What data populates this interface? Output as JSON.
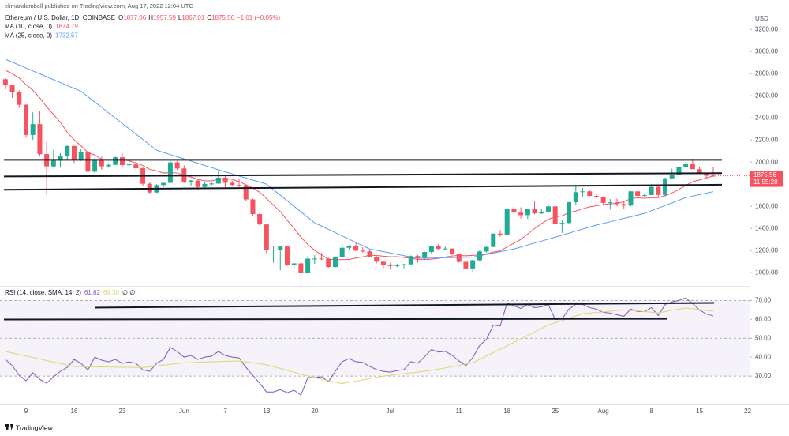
{
  "header": {
    "publisher": "elimandambell published on TradingView.com, Aug 17, 2022 12:04 UTC",
    "logo": "TradingView"
  },
  "chart_data": [
    {
      "type": "candlestick",
      "title": "Ethereum / U.S. Dollar, 1D, COINBASE",
      "ohlc_labels": [
        "O",
        "H",
        "L",
        "C"
      ],
      "change": "−1.01 (−0.05%)",
      "categories": [
        null,
        null,
        null,
        "9",
        null,
        null,
        null,
        null,
        null,
        null,
        "16",
        null,
        null,
        null,
        null,
        null,
        null,
        "23",
        null,
        null,
        null,
        null,
        null,
        null,
        null,
        null,
        "Jun",
        null,
        null,
        null,
        null,
        null,
        "7",
        null,
        null,
        null,
        null,
        null,
        "13",
        null,
        null,
        null,
        null,
        null,
        null,
        "20",
        null,
        null,
        null,
        null,
        null,
        null,
        null,
        null,
        null,
        null,
        "Jul",
        null,
        null,
        null,
        null,
        null,
        null,
        null,
        null,
        null,
        "11",
        null,
        null,
        null,
        null,
        null,
        null,
        "18",
        null,
        null,
        null,
        null,
        null,
        null,
        "25",
        null,
        null,
        null,
        null,
        null,
        null,
        "Aug",
        null,
        null,
        null,
        null,
        null,
        null,
        "8",
        null,
        null,
        null,
        null,
        null,
        null,
        "15",
        null,
        null,
        null,
        null,
        null,
        null,
        "22"
      ],
      "open": [
        2749,
        2694,
        2636,
        2518,
        2245,
        2343,
        2072,
        1961,
        2014,
        2057,
        2145,
        2024,
        2090,
        1913,
        2018,
        1961,
        1975,
        2043,
        1973,
        1979,
        1944,
        1804,
        1725,
        1792,
        1812,
        1997,
        1942,
        1820,
        1833,
        1775,
        1802,
        1806,
        1859,
        1813,
        1793,
        1790,
        1662,
        1530,
        1436,
        1207,
        1208,
        1236,
        1068,
        1084,
        995,
        1127,
        1127,
        1125,
        1051,
        1144,
        1225,
        1243,
        1199,
        1193,
        1144,
        1099,
        1067,
        1061,
        1067,
        1075,
        1150,
        1134,
        1187,
        1237,
        1215,
        1218,
        1168,
        1098,
        1038,
        1112,
        1192,
        1233,
        1353,
        1340,
        1580,
        1543,
        1520,
        1576,
        1536,
        1552,
        1599,
        1441,
        1450,
        1637,
        1728,
        1735,
        1694,
        1680,
        1631,
        1636,
        1620,
        1607,
        1735,
        1694,
        1701,
        1776,
        1703,
        1853,
        1880,
        1957,
        1982,
        1936,
        1901,
        1877.06,
        null,
        null,
        null,
        null,
        null
      ],
      "high": [
        2760,
        2700,
        2650,
        2525,
        2450,
        2460,
        2195,
        2110,
        2080,
        2155,
        2150,
        2115,
        2100,
        2040,
        2050,
        1990,
        2050,
        2080,
        2005,
        2010,
        1955,
        1820,
        1800,
        1815,
        2010,
        2010,
        1970,
        1840,
        1850,
        1815,
        1820,
        1920,
        1880,
        1830,
        1850,
        1800,
        1670,
        1550,
        1440,
        1240,
        1245,
        1245,
        1110,
        1090,
        1150,
        1160,
        1180,
        1135,
        1150,
        1235,
        1250,
        1280,
        1230,
        1210,
        1150,
        1100,
        1090,
        1080,
        1080,
        1155,
        1160,
        1190,
        1245,
        1260,
        1235,
        1220,
        1170,
        1100,
        1115,
        1205,
        1235,
        1355,
        1385,
        1585,
        1620,
        1590,
        1580,
        1650,
        1580,
        1605,
        1600,
        1475,
        1640,
        1780,
        1765,
        1750,
        1710,
        1690,
        1665,
        1670,
        1640,
        1740,
        1740,
        1720,
        1800,
        1780,
        1860,
        1940,
        1960,
        2000,
        2030,
        1960,
        1905,
        1957.59,
        null,
        null,
        null,
        null,
        null
      ],
      "low": [
        2660,
        2580,
        2490,
        2220,
        2200,
        2050,
        1704,
        1950,
        1950,
        2020,
        1990,
        2010,
        1905,
        1900,
        1930,
        1950,
        1970,
        1960,
        1950,
        1925,
        1780,
        1710,
        1720,
        1775,
        1810,
        1930,
        1810,
        1780,
        1745,
        1765,
        1790,
        1800,
        1770,
        1780,
        1775,
        1650,
        1510,
        1420,
        1175,
        1090,
        1020,
        1060,
        1030,
        881,
        990,
        1080,
        1115,
        1045,
        1045,
        1130,
        1205,
        1195,
        1180,
        1140,
        1085,
        1040,
        1030,
        1050,
        1040,
        1070,
        1090,
        1120,
        1170,
        1200,
        1200,
        1160,
        1090,
        1030,
        1005,
        1100,
        1180,
        1230,
        1325,
        1335,
        1510,
        1490,
        1485,
        1530,
        1530,
        1540,
        1430,
        1360,
        1440,
        1610,
        1690,
        1690,
        1670,
        1610,
        1570,
        1600,
        1580,
        1600,
        1690,
        1685,
        1700,
        1685,
        1690,
        1845,
        1875,
        1950,
        1935,
        1890,
        1860,
        1867.01,
        null,
        null,
        null,
        null,
        null
      ],
      "close": [
        2694,
        2636,
        2518,
        2245,
        2343,
        2072,
        1961,
        2014,
        2057,
        2145,
        2024,
        2090,
        1913,
        2018,
        1961,
        1975,
        2043,
        1973,
        1979,
        1944,
        1804,
        1725,
        1792,
        1812,
        1997,
        1942,
        1820,
        1833,
        1775,
        1802,
        1806,
        1859,
        1813,
        1793,
        1790,
        1662,
        1530,
        1436,
        1207,
        1208,
        1236,
        1068,
        1084,
        995,
        1127,
        1127,
        1125,
        1051,
        1144,
        1225,
        1243,
        1199,
        1193,
        1144,
        1099,
        1067,
        1061,
        1067,
        1075,
        1150,
        1134,
        1187,
        1237,
        1215,
        1218,
        1168,
        1098,
        1038,
        1112,
        1192,
        1233,
        1353,
        1340,
        1580,
        1543,
        1520,
        1576,
        1536,
        1552,
        1599,
        1441,
        1450,
        1637,
        1728,
        1735,
        1694,
        1680,
        1631,
        1636,
        1620,
        1607,
        1735,
        1694,
        1701,
        1776,
        1703,
        1853,
        1880,
        1957,
        1982,
        1936,
        1901,
        1877.06,
        1875.56,
        null,
        null,
        null,
        null,
        null
      ],
      "up_color": "#22ab94",
      "down_color": "#f7525f",
      "series": [
        {
          "name": "MA (10, close, 0)",
          "color": "#f7525f",
          "values": [
            2830,
            2800,
            2760,
            2700,
            2650,
            2580,
            2500,
            2430,
            2360,
            2269,
            2202,
            2147,
            2086,
            2064,
            2026,
            2016,
            2024,
            2020,
            2012,
            1992,
            1970,
            1934,
            1921,
            1901,
            1904,
            1901,
            1879,
            1865,
            1844,
            1830,
            1830,
            1844,
            1846,
            1844,
            1823,
            1795,
            1766,
            1727,
            1670,
            1610,
            1553,
            1474,
            1401,
            1322,
            1255,
            1202,
            1161,
            1123,
            1117,
            1118,
            1119,
            1132,
            1143,
            1158,
            1155,
            1149,
            1143,
            1144,
            1137,
            1130,
            1119,
            1118,
            1122,
            1129,
            1141,
            1151,
            1155,
            1152,
            1156,
            1160,
            1170,
            1186,
            1197,
            1233,
            1266,
            1301,
            1349,
            1399,
            1443,
            1483,
            1504,
            1514,
            1543,
            1558,
            1577,
            1595,
            1605,
            1615,
            1623,
            1625,
            1642,
            1670,
            1676,
            1673,
            1677,
            1678,
            1696,
            1721,
            1753,
            1789,
            1822,
            1838,
            1857,
            1874.79,
            null,
            null,
            null,
            null,
            null
          ]
        },
        {
          "name": "MA (25, close, 0)",
          "color": "#5b9cf6",
          "values": [
            2930,
            2904,
            2877,
            2851,
            2824,
            2798,
            2772,
            2745,
            2719,
            2692,
            2666,
            2640,
            2592,
            2543,
            2495,
            2446,
            2398,
            2349,
            2301,
            2253,
            2204,
            2156,
            2107,
            2087,
            2068,
            2048,
            2028,
            2009,
            1989,
            1969,
            1950,
            1930,
            1911,
            1893,
            1874,
            1856,
            1837,
            1819,
            1800,
            1750,
            1700,
            1650,
            1600,
            1550,
            1500,
            1450,
            1421,
            1391,
            1362,
            1332,
            1303,
            1273,
            1244,
            1214,
            1202,
            1190,
            1178,
            1166,
            1153,
            1141,
            1129,
            1130,
            1132,
            1133,
            1135,
            1136,
            1137,
            1139,
            1140,
            1152,
            1165,
            1177,
            1189,
            1202,
            1214,
            1232,
            1250,
            1268,
            1285,
            1303,
            1321,
            1339,
            1357,
            1376,
            1394,
            1412,
            1430,
            1445,
            1460,
            1475,
            1491,
            1506,
            1521,
            1536,
            1560,
            1584,
            1608,
            1631,
            1655,
            1679,
            1692,
            1706,
            1719,
            1732.57,
            null,
            null,
            null,
            null,
            null
          ]
        }
      ],
      "trend_lines": [
        [
          2020,
          2020
        ],
        [
          1870,
          1900
        ],
        [
          1750,
          1795
        ]
      ],
      "y_axis_label": "USD",
      "ylim": [
        880,
        3330
      ],
      "yticks": [
        {
          "value": 1000,
          "label": "1000.00"
        },
        {
          "value": 1200,
          "label": "1200.00"
        },
        {
          "value": 1400,
          "label": "1400.00"
        },
        {
          "value": 1600,
          "label": "1600.00"
        },
        {
          "value": 1800,
          "label": "1800.00"
        },
        {
          "value": 2000,
          "label": "2000.00"
        },
        {
          "value": 2200,
          "label": "2200.00"
        },
        {
          "value": 2400,
          "label": "2400.00"
        },
        {
          "value": 2600,
          "label": "2600.00"
        },
        {
          "value": 2800,
          "label": "2800.00"
        },
        {
          "value": 3000,
          "label": "3000.00"
        },
        {
          "value": 3200,
          "label": "3200.00"
        }
      ],
      "countdown": "11:55:28"
    },
    {
      "type": "line",
      "title": "RSI (14, close, SMA, 14, 2)",
      "extras": "∅ ∅",
      "series": [
        {
          "color": "#7e57c2",
          "values": [
            38.8,
            35.5,
            30.4,
            27.5,
            31.7,
            28.3,
            26.2,
            29.6,
            32.5,
            34.6,
            38.8,
            36.7,
            33.3,
            40,
            38.4,
            37.5,
            38.8,
            36.7,
            37.5,
            36.7,
            33.3,
            32.5,
            36.7,
            38.8,
            45.1,
            43,
            40,
            40.9,
            38.8,
            40,
            40.5,
            43,
            40.9,
            40,
            39.6,
            34.6,
            30.4,
            26.2,
            21.6,
            21.6,
            22.8,
            21.2,
            22.5,
            19.9,
            29.2,
            29.2,
            29.6,
            27.1,
            32.5,
            37.6,
            39.2,
            37.6,
            37.2,
            35.1,
            33.4,
            32.5,
            32.1,
            32.9,
            33.4,
            37.6,
            36.8,
            40.2,
            44,
            42.7,
            43.1,
            41,
            38,
            35.5,
            39.7,
            46.1,
            49.4,
            57,
            56.5,
            68.7,
            67.1,
            65.8,
            67.9,
            66.2,
            66.6,
            67.9,
            59.9,
            60.3,
            65.4,
            67.9,
            67.9,
            66.2,
            65.4,
            63.7,
            63.3,
            62.4,
            61.6,
            65.4,
            64.1,
            64.1,
            66.2,
            62,
            67.9,
            69.2,
            70,
            71.3,
            68.3,
            64.9,
            62.8,
            61.82,
            null,
            null,
            null,
            null,
            null
          ]
        },
        {
          "color": "#d9d96a",
          "legend_label": "64.30",
          "values": [
            43,
            42.2,
            41.4,
            40.6,
            39.8,
            39,
            38.2,
            37.4,
            36.6,
            35.8,
            35,
            35,
            34.9,
            34.9,
            34.8,
            34.8,
            34.7,
            34.7,
            34.6,
            34.6,
            34.5,
            34.9,
            35.3,
            35.8,
            36.2,
            36.6,
            37,
            37.1,
            37.3,
            37.4,
            37.5,
            37.6,
            37.8,
            37.9,
            38,
            37.5,
            37,
            36.5,
            36,
            35,
            34,
            33,
            32,
            31,
            30,
            29.2,
            28.4,
            27.6,
            26.8,
            26,
            26.7,
            27.3,
            28,
            28.7,
            29.3,
            30,
            30.4,
            30.9,
            31.3,
            31.7,
            32.1,
            32.6,
            33,
            33.7,
            34.3,
            35,
            35.7,
            36.3,
            37,
            38.8,
            40.6,
            42.4,
            44.2,
            46,
            47.8,
            49.7,
            51.5,
            53.3,
            55.2,
            57,
            58.2,
            59.4,
            60.6,
            61.8,
            63,
            63.3,
            63.7,
            64,
            64.3,
            64.7,
            65,
            64.7,
            64.4,
            64.1,
            63.8,
            63.5,
            64.1,
            64.8,
            65.4,
            66,
            65.6,
            65.2,
            64.7,
            64.3,
            null,
            null,
            null,
            null,
            null
          ]
        }
      ],
      "trend_lines": [
        [
          66.2,
          68.7
        ],
        [
          59.9,
          60.3
        ]
      ],
      "band": [
        30,
        70
      ],
      "levels": [
        70,
        50,
        30
      ],
      "band_color": "#7e57c2",
      "ylim": [
        15,
        76
      ],
      "yticks": [
        {
          "value": 30,
          "label": "30.00"
        },
        {
          "value": 40,
          "label": "40.00"
        },
        {
          "value": 50,
          "label": "50.00"
        },
        {
          "value": 60,
          "label": "60.00"
        },
        {
          "value": 70,
          "label": "70.00"
        }
      ]
    }
  ]
}
